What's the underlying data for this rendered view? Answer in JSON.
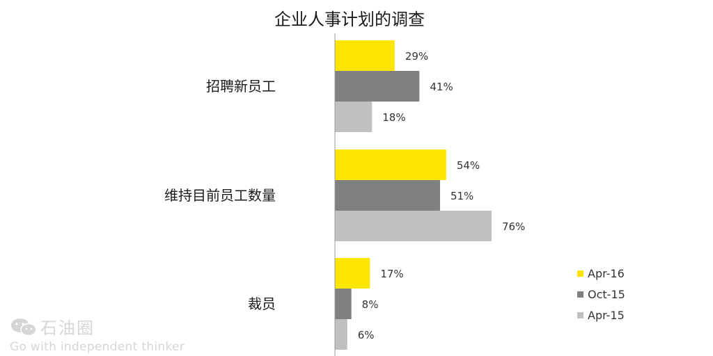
{
  "chart_data": {
    "type": "bar",
    "orientation": "horizontal",
    "title": "企业人事计划的调查",
    "categories": [
      "招聘新员工",
      "维持目前员工数量",
      "裁员"
    ],
    "series": [
      {
        "name": "Apr-16",
        "values": [
          29,
          54,
          17
        ],
        "color": "#FFE600"
      },
      {
        "name": "Oct-15",
        "values": [
          41,
          51,
          8
        ],
        "color": "#808080"
      },
      {
        "name": "Apr-15",
        "values": [
          18,
          76,
          6
        ],
        "color": "#C0C0C0"
      }
    ],
    "value_suffix": "%",
    "xlim": [
      0,
      100
    ],
    "grid": false,
    "legend_position": "bottom-right"
  },
  "watermark": {
    "brand": "石油圈",
    "tagline": "Go with independent thinker"
  }
}
